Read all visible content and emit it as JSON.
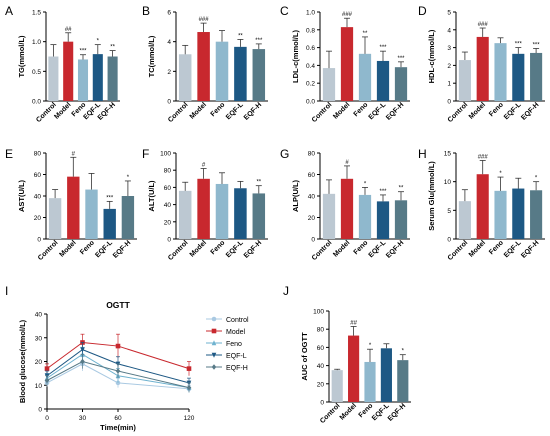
{
  "colors": {
    "control": "#bcc8d2",
    "model": "#c8282e",
    "feno": "#8fb8cd",
    "eqfl": "#1d5884",
    "eqfh": "#577a87",
    "err": "#333333"
  },
  "chart_data": [
    {
      "id": "A",
      "type": "bar",
      "ylabel": "TG(mmol/L)",
      "ylim": [
        0,
        1.5
      ],
      "yticks": [
        0.0,
        0.5,
        1.0,
        1.5
      ],
      "tick_decimals": 1,
      "categories": [
        "Control",
        "Model",
        "Feno",
        "EQF-L",
        "EQF-H"
      ],
      "values": [
        0.75,
        1.0,
        0.7,
        0.79,
        0.75
      ],
      "errors": [
        0.2,
        0.15,
        0.08,
        0.16,
        0.1
      ],
      "annotations": [
        "",
        "##",
        "***",
        "*",
        "**"
      ]
    },
    {
      "id": "B",
      "type": "bar",
      "ylabel": "TC(mmol/L)",
      "ylim": [
        0,
        6
      ],
      "yticks": [
        0,
        2,
        4,
        6
      ],
      "tick_decimals": 0,
      "categories": [
        "Control",
        "Model",
        "Feno",
        "EQF-L",
        "EQF-H"
      ],
      "values": [
        3.15,
        4.65,
        4.0,
        3.65,
        3.5
      ],
      "errors": [
        0.6,
        0.6,
        0.75,
        0.5,
        0.35
      ],
      "annotations": [
        "",
        "###",
        "",
        "**",
        "***"
      ]
    },
    {
      "id": "C",
      "type": "bar",
      "ylabel": "LDL-c(mmol/L)",
      "ylim": [
        0,
        1.0
      ],
      "yticks": [
        0.0,
        0.2,
        0.4,
        0.6,
        0.8,
        1.0
      ],
      "tick_decimals": 1,
      "categories": [
        "Control",
        "Model",
        "Feno",
        "EQF-L",
        "EQF-H"
      ],
      "values": [
        0.37,
        0.83,
        0.53,
        0.45,
        0.38
      ],
      "errors": [
        0.19,
        0.1,
        0.19,
        0.11,
        0.06
      ],
      "annotations": [
        "",
        "###",
        "**",
        "***",
        "***"
      ]
    },
    {
      "id": "D",
      "type": "bar",
      "ylabel": "HDL-c(mmol/L)",
      "ylim": [
        0,
        5
      ],
      "yticks": [
        0,
        1,
        2,
        3,
        4,
        5
      ],
      "tick_decimals": 0,
      "categories": [
        "Control",
        "Model",
        "Feno",
        "EQF-L",
        "EQF-H"
      ],
      "values": [
        2.3,
        3.6,
        3.25,
        2.65,
        2.7
      ],
      "errors": [
        0.45,
        0.5,
        0.3,
        0.35,
        0.25
      ],
      "annotations": [
        "",
        "###",
        "",
        "***",
        "***"
      ]
    },
    {
      "id": "E",
      "type": "bar",
      "ylabel": "AST(U/L)",
      "ylim": [
        0,
        80
      ],
      "yticks": [
        0,
        20,
        40,
        60,
        80
      ],
      "tick_decimals": 0,
      "categories": [
        "Control",
        "Model",
        "Feno",
        "EQF-L",
        "EQF-H"
      ],
      "values": [
        38,
        58,
        46,
        28,
        40
      ],
      "errors": [
        8,
        18,
        15,
        7,
        14
      ],
      "annotations": [
        "",
        "#",
        "",
        "***",
        "*"
      ]
    },
    {
      "id": "F",
      "type": "bar",
      "ylabel": "ALT(U/L)",
      "ylim": [
        0,
        100
      ],
      "yticks": [
        0,
        20,
        40,
        60,
        80,
        100
      ],
      "tick_decimals": 0,
      "categories": [
        "Control",
        "Model",
        "Feno",
        "EQF-L",
        "EQF-H"
      ],
      "values": [
        56,
        70,
        64,
        59,
        53
      ],
      "errors": [
        10,
        12,
        13,
        8,
        9
      ],
      "annotations": [
        "",
        "#",
        "",
        "",
        "**"
      ]
    },
    {
      "id": "G",
      "type": "bar",
      "ylabel": "ALP(U/L)",
      "ylim": [
        0,
        80
      ],
      "yticks": [
        0,
        20,
        40,
        60,
        80
      ],
      "tick_decimals": 0,
      "categories": [
        "Control",
        "Model",
        "Feno",
        "EQF-L",
        "EQF-H"
      ],
      "values": [
        42,
        56,
        41,
        35,
        36
      ],
      "errors": [
        13,
        12,
        7,
        6,
        8
      ],
      "annotations": [
        "",
        "#",
        "*",
        "***",
        "**"
      ]
    },
    {
      "id": "H",
      "type": "bar",
      "ylabel": "Serum Glu(mmol/L)",
      "ylim": [
        0,
        15
      ],
      "yticks": [
        0,
        5,
        10,
        15
      ],
      "tick_decimals": 0,
      "categories": [
        "Control",
        "Model",
        "Feno",
        "EQF-L",
        "EQF-H"
      ],
      "values": [
        6.6,
        11.3,
        8.4,
        8.8,
        8.5
      ],
      "errors": [
        2.0,
        2.4,
        2.4,
        1.8,
        1.5
      ],
      "annotations": [
        "",
        "###",
        "*",
        "",
        "*"
      ]
    },
    {
      "id": "I",
      "type": "line",
      "title": "OGTT",
      "xlabel": "Time(min)",
      "ylabel": "Blood glucose(mmol/L)",
      "x": [
        0,
        30,
        60,
        120
      ],
      "xlim": [
        0,
        120
      ],
      "ylim": [
        0,
        40
      ],
      "yticks": [
        0,
        10,
        20,
        30,
        40
      ],
      "legend_position": "right",
      "series": [
        {
          "name": "Control",
          "values": [
            11,
            19,
            11,
            8.5
          ],
          "errors": [
            1.5,
            3,
            2,
            1.5
          ],
          "marker": "circle"
        },
        {
          "name": "Model",
          "values": [
            17,
            28,
            26.5,
            17
          ],
          "errors": [
            2,
            3.5,
            5,
            3
          ],
          "marker": "square"
        },
        {
          "name": "Feno",
          "values": [
            13,
            23,
            14,
            9
          ],
          "errors": [
            2,
            3,
            3,
            2
          ],
          "marker": "triangle-up"
        },
        {
          "name": "EQF-L",
          "values": [
            14,
            25,
            19,
            11
          ],
          "errors": [
            2,
            3,
            3,
            2
          ],
          "marker": "triangle-down"
        },
        {
          "name": "EQF-H",
          "values": [
            12,
            20,
            16,
            9
          ],
          "errors": [
            2,
            3,
            3,
            2
          ],
          "marker": "diamond"
        }
      ]
    },
    {
      "id": "J",
      "type": "bar",
      "ylabel": "AUC of OGTT",
      "ylim": [
        0,
        100
      ],
      "yticks": [
        0,
        20,
        40,
        60,
        80,
        100
      ],
      "tick_decimals": 0,
      "categories": [
        "Control",
        "Model",
        "Feno",
        "EQF-L",
        "EQF-H"
      ],
      "values": [
        35,
        73,
        44,
        59,
        46
      ],
      "errors": [
        1,
        10,
        14,
        5,
        6
      ],
      "annotations": [
        "",
        "##",
        "*",
        "",
        "*"
      ]
    }
  ]
}
